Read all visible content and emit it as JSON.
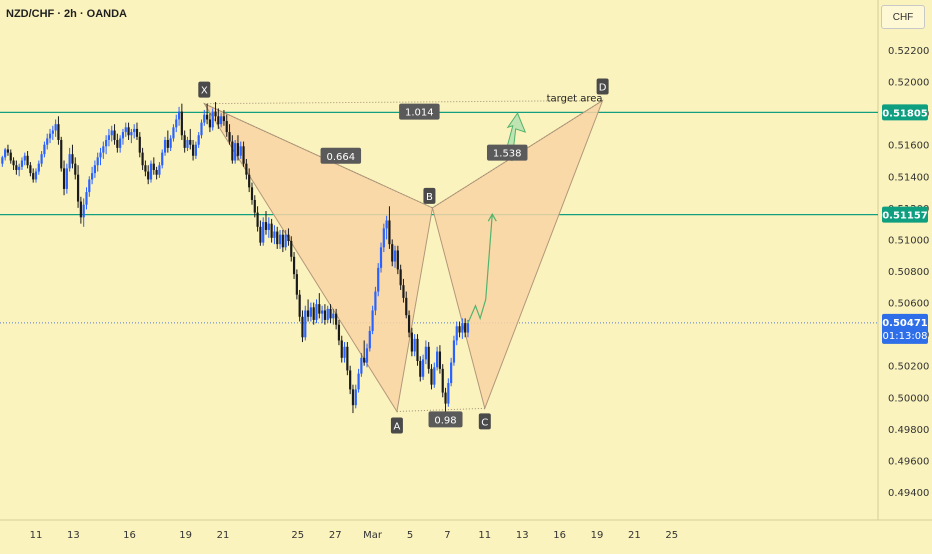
{
  "header": {
    "title": "NZD/CHF · 2h · OANDA",
    "currency": "CHF"
  },
  "colors": {
    "background": "#fbf3bd",
    "candle_up": "#2962ff",
    "candle_down": "#1b1b1b",
    "pattern_fill": "#f9d3a6",
    "pattern_stroke": "#b2977a",
    "horizontal_line": "#149e80",
    "price_badge": "#0e9f80",
    "current_price_badge": "#2e6ee8",
    "projection": "#52b36c"
  },
  "chart_data": {
    "type": "candlestick",
    "instrument": "NZD/CHF",
    "timeframe": "2h",
    "source": "OANDA",
    "ylim": [
      0.4928,
      0.5242
    ],
    "y_ticks": [
      0.522,
      0.52,
      0.518,
      0.516,
      0.514,
      0.512,
      0.51,
      0.508,
      0.506,
      0.504,
      0.502,
      0.5,
      0.498,
      0.496,
      0.494
    ],
    "y_tick_labels": [
      "0.52200",
      "0.52000",
      "0.51800",
      "0.51600",
      "0.51400",
      "0.51200",
      "0.51000",
      "0.50800",
      "0.50600",
      "0.50400",
      "0.50200",
      "0.50000",
      "0.49800",
      "0.49600",
      "0.49400"
    ],
    "x_ticks": [
      {
        "label": "11",
        "day": 11
      },
      {
        "label": "13",
        "day": 13
      },
      {
        "label": "16",
        "day": 16
      },
      {
        "label": "19",
        "day": 19
      },
      {
        "label": "21",
        "day": 21
      },
      {
        "label": "25",
        "day": 25
      },
      {
        "label": "27",
        "day": 27
      },
      {
        "label": "Mar",
        "day": 29
      },
      {
        "label": "5",
        "day": 31
      },
      {
        "label": "7",
        "day": 33
      },
      {
        "label": "11",
        "day": 35
      },
      {
        "label": "13",
        "day": 37
      },
      {
        "label": "16",
        "day": 39
      },
      {
        "label": "19",
        "day": 41
      },
      {
        "label": "21",
        "day": 43
      },
      {
        "label": "25",
        "day": 45
      }
    ],
    "horizontal_levels": [
      {
        "price": 0.51805,
        "label": "0.51805"
      },
      {
        "price": 0.51157,
        "label": "0.51157"
      }
    ],
    "current_price": {
      "price": 0.50471,
      "label": "0.50471",
      "countdown": "01:13:08"
    },
    "pattern": {
      "points": [
        {
          "name": "X",
          "day": 20.0,
          "price": 0.5186
        },
        {
          "name": "A",
          "day": 30.3,
          "price": 0.4991
        },
        {
          "name": "B",
          "day": 32.2,
          "price": 0.512
        },
        {
          "name": "C",
          "day": 35.0,
          "price": 0.4993
        },
        {
          "name": "D",
          "day": 41.3,
          "price": 0.5188
        }
      ],
      "ratios": [
        {
          "label": "1.014",
          "day": 31.5,
          "price": 0.5181
        },
        {
          "label": "0.664",
          "day": 27.3,
          "price": 0.5153
        },
        {
          "label": "1.538",
          "day": 36.2,
          "price": 0.5155
        },
        {
          "label": "0.98",
          "day": 32.9,
          "price": 0.4986
        }
      ],
      "annotation": {
        "text": "target area",
        "day": 39.8,
        "price": 0.51875
      }
    },
    "candles": [
      [
        9.2,
        0.5148,
        0.5153,
        0.5146,
        0.5152
      ],
      [
        9.35,
        0.5152,
        0.5158,
        0.515,
        0.5157
      ],
      [
        9.5,
        0.5157,
        0.516,
        0.5153,
        0.5155
      ],
      [
        9.65,
        0.5155,
        0.5157,
        0.5148,
        0.515
      ],
      [
        9.8,
        0.515,
        0.5152,
        0.5144,
        0.5147
      ],
      [
        9.95,
        0.5147,
        0.515,
        0.5141,
        0.5144
      ],
      [
        10.1,
        0.5144,
        0.5148,
        0.514,
        0.5146
      ],
      [
        10.25,
        0.5146,
        0.5152,
        0.5144,
        0.515
      ],
      [
        10.4,
        0.515,
        0.5155,
        0.5147,
        0.5153
      ],
      [
        10.55,
        0.5153,
        0.5156,
        0.5145,
        0.5147
      ],
      [
        10.7,
        0.5147,
        0.5149,
        0.514,
        0.5142
      ],
      [
        10.85,
        0.5142,
        0.5145,
        0.5136,
        0.5138
      ],
      [
        11.0,
        0.5138,
        0.5145,
        0.5136,
        0.5143
      ],
      [
        11.15,
        0.5143,
        0.515,
        0.5141,
        0.5148
      ],
      [
        11.3,
        0.5148,
        0.5156,
        0.5146,
        0.5154
      ],
      [
        11.45,
        0.5154,
        0.5162,
        0.5152,
        0.516
      ],
      [
        11.6,
        0.516,
        0.5167,
        0.5157,
        0.5164
      ],
      [
        11.75,
        0.5164,
        0.517,
        0.5161,
        0.5167
      ],
      [
        11.9,
        0.5167,
        0.5172,
        0.5163,
        0.5169
      ],
      [
        12.05,
        0.5169,
        0.5176,
        0.5165,
        0.5173
      ],
      [
        12.2,
        0.5173,
        0.5178,
        0.516,
        0.5163
      ],
      [
        12.35,
        0.5163,
        0.5165,
        0.5143,
        0.5145
      ],
      [
        12.5,
        0.5145,
        0.515,
        0.5128,
        0.5132
      ],
      [
        12.65,
        0.5132,
        0.5148,
        0.5129,
        0.5145
      ],
      [
        12.8,
        0.5145,
        0.5158,
        0.5143,
        0.5154
      ],
      [
        12.95,
        0.5154,
        0.516,
        0.5145,
        0.5148
      ],
      [
        13.1,
        0.5148,
        0.5152,
        0.5138,
        0.5141
      ],
      [
        13.25,
        0.5141,
        0.5147,
        0.512,
        0.5124
      ],
      [
        13.4,
        0.5124,
        0.5127,
        0.511,
        0.5114
      ],
      [
        13.55,
        0.5114,
        0.5126,
        0.5108,
        0.5122
      ],
      [
        13.7,
        0.5122,
        0.5133,
        0.5119,
        0.513
      ],
      [
        13.85,
        0.513,
        0.514,
        0.5127,
        0.5138
      ],
      [
        14.0,
        0.5138,
        0.5146,
        0.5135,
        0.5142
      ],
      [
        14.15,
        0.5142,
        0.515,
        0.5139,
        0.5147
      ],
      [
        14.3,
        0.5147,
        0.5155,
        0.5143,
        0.5152
      ],
      [
        14.45,
        0.5152,
        0.5158,
        0.5147,
        0.5155
      ],
      [
        14.6,
        0.5155,
        0.5162,
        0.5151,
        0.5159
      ],
      [
        14.75,
        0.5159,
        0.5166,
        0.5154,
        0.5163
      ],
      [
        14.9,
        0.5163,
        0.517,
        0.5159,
        0.5166
      ],
      [
        15.05,
        0.5166,
        0.5172,
        0.5162,
        0.5169
      ],
      [
        15.2,
        0.5169,
        0.5173,
        0.516,
        0.5163
      ],
      [
        15.35,
        0.5163,
        0.5167,
        0.5155,
        0.5158
      ],
      [
        15.5,
        0.5158,
        0.5166,
        0.5155,
        0.5164
      ],
      [
        15.65,
        0.5164,
        0.517,
        0.516,
        0.5168
      ],
      [
        15.8,
        0.5168,
        0.5174,
        0.5165,
        0.5171
      ],
      [
        15.95,
        0.5171,
        0.5174,
        0.5163,
        0.5166
      ],
      [
        16.1,
        0.5166,
        0.517,
        0.5161,
        0.5168
      ],
      [
        16.25,
        0.5168,
        0.5173,
        0.5164,
        0.517
      ],
      [
        16.4,
        0.517,
        0.5174,
        0.5163,
        0.5165
      ],
      [
        16.55,
        0.5165,
        0.5168,
        0.5152,
        0.5155
      ],
      [
        16.7,
        0.5155,
        0.5158,
        0.5144,
        0.5147
      ],
      [
        16.85,
        0.5147,
        0.515,
        0.514,
        0.5143
      ],
      [
        17.0,
        0.5143,
        0.5147,
        0.5135,
        0.5138
      ],
      [
        17.15,
        0.5138,
        0.515,
        0.5136,
        0.5148
      ],
      [
        17.3,
        0.5148,
        0.5152,
        0.5141,
        0.5144
      ],
      [
        17.45,
        0.5144,
        0.5146,
        0.5138,
        0.5141
      ],
      [
        17.6,
        0.5141,
        0.5149,
        0.5139,
        0.5147
      ],
      [
        17.75,
        0.5147,
        0.5157,
        0.5145,
        0.5155
      ],
      [
        17.9,
        0.5155,
        0.5165,
        0.5153,
        0.5163
      ],
      [
        18.05,
        0.5163,
        0.5169,
        0.5155,
        0.5158
      ],
      [
        18.2,
        0.5158,
        0.5166,
        0.5156,
        0.5164
      ],
      [
        18.35,
        0.5164,
        0.5173,
        0.5162,
        0.5171
      ],
      [
        18.5,
        0.5171,
        0.5179,
        0.5168,
        0.5176
      ],
      [
        18.65,
        0.5176,
        0.5184,
        0.5172,
        0.5181
      ],
      [
        18.8,
        0.5181,
        0.5186,
        0.5163,
        0.5166
      ],
      [
        18.95,
        0.5166,
        0.5169,
        0.5155,
        0.5158
      ],
      [
        19.1,
        0.5158,
        0.5165,
        0.5156,
        0.5163
      ],
      [
        19.25,
        0.5163,
        0.517,
        0.5157,
        0.516
      ],
      [
        19.4,
        0.516,
        0.5163,
        0.515,
        0.5153
      ],
      [
        19.55,
        0.5153,
        0.5162,
        0.5151,
        0.516
      ],
      [
        19.7,
        0.516,
        0.5168,
        0.5158,
        0.5166
      ],
      [
        19.85,
        0.5166,
        0.5176,
        0.5164,
        0.5174
      ],
      [
        20.0,
        0.5174,
        0.5182,
        0.5172,
        0.5179
      ],
      [
        20.15,
        0.5179,
        0.5186,
        0.5173,
        0.5176
      ],
      [
        20.3,
        0.5176,
        0.518,
        0.5168,
        0.5171
      ],
      [
        20.45,
        0.5171,
        0.5183,
        0.5169,
        0.5181
      ],
      [
        20.6,
        0.5181,
        0.5187,
        0.5175,
        0.5178
      ],
      [
        20.75,
        0.5178,
        0.5183,
        0.517,
        0.5173
      ],
      [
        20.9,
        0.5173,
        0.518,
        0.5171,
        0.5178
      ],
      [
        21.05,
        0.5178,
        0.5182,
        0.5172,
        0.5175
      ],
      [
        21.2,
        0.5175,
        0.5179,
        0.5165,
        0.5168
      ],
      [
        21.35,
        0.5168,
        0.5173,
        0.516,
        0.5162
      ],
      [
        21.5,
        0.5162,
        0.5166,
        0.5148,
        0.515
      ],
      [
        21.65,
        0.515,
        0.5163,
        0.5148,
        0.5161
      ],
      [
        21.8,
        0.5161,
        0.5166,
        0.515,
        0.5153
      ],
      [
        21.95,
        0.5153,
        0.5162,
        0.5151,
        0.5159
      ],
      [
        22.1,
        0.5159,
        0.5162,
        0.5146,
        0.5148
      ],
      [
        22.25,
        0.5148,
        0.5151,
        0.5138,
        0.5141
      ],
      [
        22.4,
        0.5141,
        0.5145,
        0.513,
        0.5133
      ],
      [
        22.55,
        0.5133,
        0.5136,
        0.5122,
        0.5125
      ],
      [
        22.7,
        0.5125,
        0.5128,
        0.5114,
        0.5117
      ],
      [
        22.85,
        0.5117,
        0.5121,
        0.5105,
        0.5108
      ],
      [
        23.0,
        0.5108,
        0.5112,
        0.5096,
        0.5098
      ],
      [
        23.15,
        0.5098,
        0.5114,
        0.5096,
        0.5111
      ],
      [
        23.3,
        0.5111,
        0.5118,
        0.5103,
        0.5106
      ],
      [
        23.45,
        0.5106,
        0.5114,
        0.5101,
        0.511
      ],
      [
        23.6,
        0.511,
        0.5113,
        0.5098,
        0.5101
      ],
      [
        23.75,
        0.5101,
        0.5109,
        0.5097,
        0.5105
      ],
      [
        23.9,
        0.5105,
        0.5108,
        0.5094,
        0.5097
      ],
      [
        24.05,
        0.5097,
        0.5106,
        0.5094,
        0.5103
      ],
      [
        24.2,
        0.5103,
        0.5106,
        0.5092,
        0.5095
      ],
      [
        24.35,
        0.5095,
        0.5106,
        0.5093,
        0.5103
      ],
      [
        24.5,
        0.5103,
        0.5107,
        0.5096,
        0.5099
      ],
      [
        24.65,
        0.5099,
        0.5102,
        0.5086,
        0.5089
      ],
      [
        24.8,
        0.5089,
        0.5092,
        0.5075,
        0.5078
      ],
      [
        24.95,
        0.5078,
        0.5081,
        0.5062,
        0.5065
      ],
      [
        25.1,
        0.5065,
        0.5068,
        0.5048,
        0.5051
      ],
      [
        25.25,
        0.5051,
        0.5055,
        0.5035,
        0.5038
      ],
      [
        25.4,
        0.5038,
        0.5058,
        0.5036,
        0.5055
      ],
      [
        25.55,
        0.5055,
        0.5062,
        0.5048,
        0.5051
      ],
      [
        25.7,
        0.5051,
        0.506,
        0.5048,
        0.5057
      ],
      [
        25.85,
        0.5057,
        0.506,
        0.5046,
        0.5049
      ],
      [
        26.0,
        0.5049,
        0.5062,
        0.5047,
        0.5059
      ],
      [
        26.15,
        0.5059,
        0.5066,
        0.505,
        0.5053
      ],
      [
        26.3,
        0.5053,
        0.5058,
        0.5047,
        0.5055
      ],
      [
        26.45,
        0.5055,
        0.5059,
        0.5046,
        0.5049
      ],
      [
        26.6,
        0.5049,
        0.5058,
        0.5047,
        0.5056
      ],
      [
        26.75,
        0.5056,
        0.5059,
        0.5047,
        0.505
      ],
      [
        26.9,
        0.505,
        0.5056,
        0.5046,
        0.5053
      ],
      [
        27.05,
        0.5053,
        0.5056,
        0.5043,
        0.5046
      ],
      [
        27.2,
        0.5046,
        0.5049,
        0.5033,
        0.5036
      ],
      [
        27.35,
        0.5036,
        0.5039,
        0.5022,
        0.5025
      ],
      [
        27.5,
        0.5025,
        0.5035,
        0.5022,
        0.5032
      ],
      [
        27.65,
        0.5032,
        0.5035,
        0.5014,
        0.5017
      ],
      [
        27.8,
        0.5017,
        0.502,
        0.5002,
        0.5005
      ],
      [
        27.95,
        0.5005,
        0.5008,
        0.499,
        0.4995
      ],
      [
        28.1,
        0.4995,
        0.5008,
        0.4993,
        0.5005
      ],
      [
        28.25,
        0.5005,
        0.5018,
        0.5003,
        0.5015
      ],
      [
        28.4,
        0.5015,
        0.5028,
        0.5013,
        0.5025
      ],
      [
        28.55,
        0.5025,
        0.5036,
        0.502,
        0.5022
      ],
      [
        28.7,
        0.5022,
        0.5034,
        0.5019,
        0.5031
      ],
      [
        28.85,
        0.5031,
        0.5045,
        0.5029,
        0.5042
      ],
      [
        29.0,
        0.5042,
        0.5058,
        0.504,
        0.5055
      ],
      [
        29.15,
        0.5055,
        0.507,
        0.5052,
        0.5067
      ],
      [
        29.3,
        0.5067,
        0.5085,
        0.5064,
        0.5082
      ],
      [
        29.45,
        0.5082,
        0.5098,
        0.5079,
        0.5095
      ],
      [
        29.6,
        0.5095,
        0.511,
        0.5092,
        0.5107
      ],
      [
        29.75,
        0.5107,
        0.5115,
        0.51,
        0.5112
      ],
      [
        29.9,
        0.5112,
        0.5121,
        0.5094,
        0.5097
      ],
      [
        30.05,
        0.5097,
        0.51,
        0.5083,
        0.5086
      ],
      [
        30.2,
        0.5086,
        0.5096,
        0.5082,
        0.5093
      ],
      [
        30.35,
        0.5093,
        0.5096,
        0.5078,
        0.5081
      ],
      [
        30.5,
        0.5081,
        0.5084,
        0.5068,
        0.5071
      ],
      [
        30.65,
        0.5071,
        0.5075,
        0.506,
        0.5063
      ],
      [
        30.8,
        0.5063,
        0.5067,
        0.505,
        0.5052
      ],
      [
        30.95,
        0.5052,
        0.5055,
        0.5038,
        0.5041
      ],
      [
        31.1,
        0.5041,
        0.5044,
        0.5026,
        0.5029
      ],
      [
        31.25,
        0.5029,
        0.504,
        0.5026,
        0.5037
      ],
      [
        31.4,
        0.5037,
        0.504,
        0.502,
        0.5023
      ],
      [
        31.55,
        0.5023,
        0.5026,
        0.501,
        0.5013
      ],
      [
        31.7,
        0.5013,
        0.5027,
        0.5011,
        0.5024
      ],
      [
        31.85,
        0.5024,
        0.5036,
        0.5021,
        0.5032
      ],
      [
        32.0,
        0.5032,
        0.5035,
        0.5015,
        0.5018
      ],
      [
        32.15,
        0.5018,
        0.5021,
        0.5005,
        0.5008
      ],
      [
        32.3,
        0.5008,
        0.5022,
        0.5006,
        0.5019
      ],
      [
        32.45,
        0.5019,
        0.5032,
        0.5017,
        0.5029
      ],
      [
        32.6,
        0.5029,
        0.5033,
        0.5015,
        0.5018
      ],
      [
        32.75,
        0.5018,
        0.5021,
        0.5,
        0.5003
      ],
      [
        32.9,
        0.5003,
        0.5006,
        0.499,
        0.4996
      ],
      [
        33.05,
        0.4996,
        0.5012,
        0.4994,
        0.5009
      ],
      [
        33.2,
        0.5009,
        0.5025,
        0.5007,
        0.5022
      ],
      [
        33.35,
        0.5022,
        0.5039,
        0.502,
        0.5036
      ],
      [
        33.5,
        0.5036,
        0.5048,
        0.5033,
        0.5045
      ],
      [
        33.65,
        0.5045,
        0.5048,
        0.5038,
        0.5041
      ],
      [
        33.8,
        0.5041,
        0.505,
        0.5037,
        0.5047
      ],
      [
        33.95,
        0.5047,
        0.505,
        0.5038,
        0.5041
      ],
      [
        34.1,
        0.5041,
        0.5049,
        0.5038,
        0.5047
      ]
    ]
  }
}
